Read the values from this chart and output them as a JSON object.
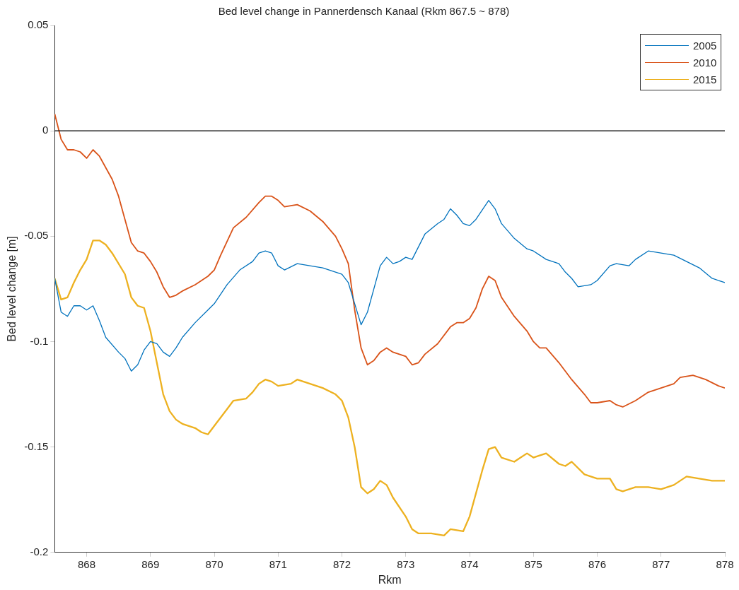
{
  "chart_data": {
    "type": "line",
    "title": "Bed level change in Pannerdensch Kanaal (Rkm 867.5 ~ 878)",
    "xlabel": "Rkm",
    "ylabel": "Bed level change [m]",
    "xlim": [
      867.5,
      878
    ],
    "xticks": [
      868,
      869,
      870,
      871,
      872,
      873,
      874,
      875,
      876,
      877,
      878
    ],
    "ylim": [
      -0.2,
      0.05
    ],
    "yticks": [
      -0.2,
      -0.15,
      -0.1,
      -0.05,
      0,
      0.05
    ],
    "legend": "top right",
    "marker": "none",
    "line_style": "solid",
    "ref_lines": [
      {
        "axis": "y",
        "value": 0,
        "color": "#000000"
      }
    ],
    "series": [
      {
        "name": "2005",
        "color": "#0072bd",
        "x": [
          867.5,
          867.6,
          867.7,
          867.8,
          867.9,
          868.0,
          868.1,
          868.2,
          868.3,
          868.5,
          868.6,
          868.7,
          868.8,
          868.9,
          869.0,
          869.1,
          869.2,
          869.3,
          869.4,
          869.5,
          869.7,
          869.9,
          870.0,
          870.2,
          870.4,
          870.6,
          870.7,
          870.8,
          870.9,
          871.0,
          871.1,
          871.3,
          871.5,
          871.7,
          871.9,
          872.0,
          872.1,
          872.3,
          872.4,
          872.6,
          872.7,
          872.8,
          872.9,
          873.0,
          873.1,
          873.3,
          873.5,
          873.6,
          873.7,
          873.8,
          873.9,
          874.0,
          874.1,
          874.3,
          874.4,
          874.5,
          874.7,
          874.9,
          875.0,
          875.2,
          875.4,
          875.5,
          875.6,
          875.7,
          875.9,
          876.0,
          876.2,
          876.3,
          876.5,
          876.6,
          876.8,
          877.0,
          877.2,
          877.4,
          877.6,
          877.8,
          878.0
        ],
        "values": [
          -0.07,
          -0.086,
          -0.088,
          -0.083,
          -0.083,
          -0.085,
          -0.083,
          -0.09,
          -0.098,
          -0.105,
          -0.108,
          -0.114,
          -0.111,
          -0.104,
          -0.1,
          -0.101,
          -0.105,
          -0.107,
          -0.103,
          -0.098,
          -0.091,
          -0.085,
          -0.082,
          -0.073,
          -0.066,
          -0.062,
          -0.058,
          -0.057,
          -0.058,
          -0.064,
          -0.066,
          -0.063,
          -0.064,
          -0.065,
          -0.067,
          -0.068,
          -0.072,
          -0.092,
          -0.086,
          -0.064,
          -0.06,
          -0.063,
          -0.062,
          -0.06,
          -0.061,
          -0.049,
          -0.044,
          -0.042,
          -0.037,
          -0.04,
          -0.044,
          -0.045,
          -0.042,
          -0.033,
          -0.037,
          -0.044,
          -0.051,
          -0.056,
          -0.057,
          -0.061,
          -0.063,
          -0.067,
          -0.07,
          -0.074,
          -0.073,
          -0.071,
          -0.064,
          -0.063,
          -0.064,
          -0.061,
          -0.057,
          -0.058,
          -0.059,
          -0.062,
          -0.065,
          -0.07,
          -0.072
        ]
      },
      {
        "name": "2010",
        "color": "#d95319",
        "x": [
          867.5,
          867.6,
          867.7,
          867.8,
          867.9,
          868.0,
          868.1,
          868.2,
          868.4,
          868.5,
          868.6,
          868.7,
          868.8,
          868.9,
          869.0,
          869.1,
          869.2,
          869.3,
          869.4,
          869.5,
          869.7,
          869.9,
          870.0,
          870.1,
          870.3,
          870.5,
          870.7,
          870.8,
          870.9,
          871.0,
          871.1,
          871.3,
          871.5,
          871.7,
          871.9,
          872.0,
          872.1,
          872.2,
          872.3,
          872.4,
          872.5,
          872.6,
          872.7,
          872.8,
          873.0,
          873.1,
          873.2,
          873.3,
          873.5,
          873.7,
          873.8,
          873.9,
          874.0,
          874.1,
          874.2,
          874.3,
          874.4,
          874.5,
          874.7,
          874.9,
          875.0,
          875.1,
          875.2,
          875.4,
          875.6,
          875.8,
          875.9,
          876.0,
          876.2,
          876.3,
          876.4,
          876.6,
          876.8,
          877.0,
          877.2,
          877.3,
          877.5,
          877.7,
          877.9,
          878.0
        ],
        "values": [
          0.008,
          -0.004,
          -0.009,
          -0.009,
          -0.01,
          -0.013,
          -0.009,
          -0.012,
          -0.023,
          -0.031,
          -0.042,
          -0.053,
          -0.057,
          -0.058,
          -0.062,
          -0.067,
          -0.074,
          -0.079,
          -0.078,
          -0.076,
          -0.073,
          -0.069,
          -0.066,
          -0.059,
          -0.046,
          -0.041,
          -0.034,
          -0.031,
          -0.031,
          -0.033,
          -0.036,
          -0.035,
          -0.038,
          -0.043,
          -0.05,
          -0.056,
          -0.063,
          -0.085,
          -0.103,
          -0.111,
          -0.109,
          -0.105,
          -0.103,
          -0.105,
          -0.107,
          -0.111,
          -0.11,
          -0.106,
          -0.101,
          -0.093,
          -0.091,
          -0.091,
          -0.089,
          -0.084,
          -0.075,
          -0.069,
          -0.071,
          -0.079,
          -0.088,
          -0.095,
          -0.1,
          -0.103,
          -0.103,
          -0.11,
          -0.118,
          -0.125,
          -0.129,
          -0.129,
          -0.128,
          -0.13,
          -0.131,
          -0.128,
          -0.124,
          -0.122,
          -0.12,
          -0.117,
          -0.116,
          -0.118,
          -0.121,
          -0.122
        ]
      },
      {
        "name": "2015",
        "color": "#edb120",
        "x": [
          867.5,
          867.6,
          867.7,
          867.8,
          867.9,
          868.0,
          868.1,
          868.2,
          868.3,
          868.4,
          868.6,
          868.7,
          868.8,
          868.9,
          869.0,
          869.1,
          869.2,
          869.3,
          869.4,
          869.5,
          869.6,
          869.7,
          869.8,
          869.9,
          870.0,
          870.2,
          870.3,
          870.5,
          870.6,
          870.7,
          870.8,
          870.9,
          871.0,
          871.2,
          871.3,
          871.5,
          871.7,
          871.9,
          872.0,
          872.1,
          872.2,
          872.3,
          872.4,
          872.5,
          872.6,
          872.7,
          872.8,
          873.0,
          873.1,
          873.2,
          873.4,
          873.6,
          873.7,
          873.9,
          874.0,
          874.2,
          874.3,
          874.4,
          874.5,
          874.7,
          874.8,
          874.9,
          875.0,
          875.2,
          875.4,
          875.5,
          875.6,
          875.8,
          876.0,
          876.2,
          876.3,
          876.4,
          876.6,
          876.8,
          877.0,
          877.2,
          877.4,
          877.6,
          877.8,
          878.0
        ],
        "values": [
          -0.07,
          -0.08,
          -0.079,
          -0.072,
          -0.066,
          -0.061,
          -0.052,
          -0.052,
          -0.054,
          -0.058,
          -0.068,
          -0.079,
          -0.083,
          -0.084,
          -0.095,
          -0.11,
          -0.125,
          -0.133,
          -0.137,
          -0.139,
          -0.14,
          -0.141,
          -0.143,
          -0.144,
          -0.14,
          -0.132,
          -0.128,
          -0.127,
          -0.124,
          -0.12,
          -0.118,
          -0.119,
          -0.121,
          -0.12,
          -0.118,
          -0.12,
          -0.122,
          -0.125,
          -0.128,
          -0.136,
          -0.15,
          -0.169,
          -0.172,
          -0.17,
          -0.166,
          -0.168,
          -0.174,
          -0.183,
          -0.189,
          -0.191,
          -0.191,
          -0.192,
          -0.189,
          -0.19,
          -0.183,
          -0.161,
          -0.151,
          -0.15,
          -0.155,
          -0.157,
          -0.155,
          -0.153,
          -0.155,
          -0.153,
          -0.158,
          -0.159,
          -0.157,
          -0.163,
          -0.165,
          -0.165,
          -0.17,
          -0.171,
          -0.169,
          -0.169,
          -0.17,
          -0.168,
          -0.164,
          -0.165,
          -0.166,
          -0.166
        ]
      }
    ]
  }
}
